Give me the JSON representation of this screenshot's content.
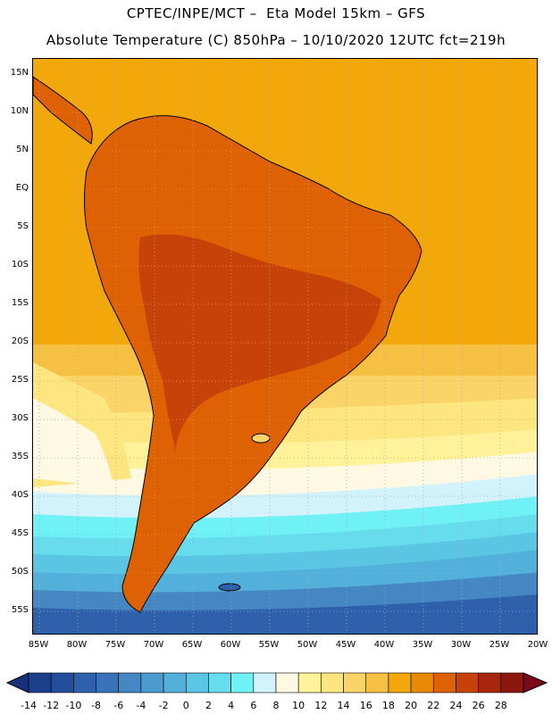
{
  "header": {
    "line1": "CPTEC/INPE/MCT –  Eta Model 15km – GFS",
    "line2": "Absolute Temperature (C) 850hPa – 10/10/2020 12UTC fct=219h"
  },
  "lat_labels": [
    "15N",
    "10N",
    "5N",
    "EQ",
    "5S",
    "10S",
    "15S",
    "20S",
    "25S",
    "30S",
    "35S",
    "40S",
    "45S",
    "50S",
    "55S"
  ],
  "lon_labels": [
    "85W",
    "80W",
    "75W",
    "70W",
    "65W",
    "60W",
    "55W",
    "50W",
    "45W",
    "40W",
    "35W",
    "30W",
    "25W",
    "20W"
  ],
  "colorbar": {
    "labels": [
      "-14",
      "-12",
      "-10",
      "-8",
      "-6",
      "-4",
      "-2",
      "0",
      "2",
      "4",
      "6",
      "8",
      "10",
      "12",
      "14",
      "16",
      "18",
      "20",
      "22",
      "24",
      "26",
      "28"
    ],
    "colors": [
      "#1c3f8c",
      "#244e9c",
      "#2e60ac",
      "#3a72b9",
      "#4487c3",
      "#4c9bce",
      "#53b0da",
      "#5bc6e4",
      "#66dced",
      "#6ff1f6",
      "#d2f3fb",
      "#fff8e2",
      "#fff29a",
      "#fde680",
      "#fad468",
      "#f6c043",
      "#f2a70a",
      "#e98a04",
      "#de6204",
      "#c64208",
      "#a8270c",
      "#8c170e"
    ],
    "under_color": "#19317a",
    "over_color": "#7a0a1a"
  },
  "colors": {
    "ocean_tropical": "#f2a70a",
    "land_warm": "#de6204",
    "land_hot": "#c64208",
    "coast_line": "#000000"
  }
}
